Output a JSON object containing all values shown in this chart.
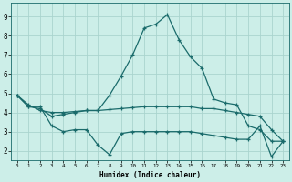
{
  "xlabel": "Humidex (Indice chaleur)",
  "background_color": "#cceee8",
  "grid_color": "#aad4ce",
  "line_color": "#1a6b6b",
  "xlim": [
    -0.5,
    23.5
  ],
  "ylim": [
    1.5,
    9.7
  ],
  "yticks": [
    2,
    3,
    4,
    5,
    6,
    7,
    8,
    9
  ],
  "xticks": [
    0,
    1,
    2,
    3,
    4,
    5,
    6,
    7,
    8,
    9,
    10,
    11,
    12,
    13,
    14,
    15,
    16,
    17,
    18,
    19,
    20,
    21,
    22,
    23
  ],
  "line1_x": [
    0,
    1,
    2,
    3,
    4,
    5,
    6,
    7,
    8,
    9,
    10,
    11,
    12,
    13,
    14,
    15,
    16,
    17,
    18,
    19,
    20,
    21,
    22,
    23
  ],
  "line1_y": [
    4.9,
    4.3,
    4.3,
    3.3,
    3.0,
    3.1,
    3.1,
    2.3,
    1.8,
    2.9,
    3.0,
    3.0,
    3.0,
    3.0,
    3.0,
    3.0,
    2.9,
    2.8,
    2.7,
    2.6,
    2.6,
    3.3,
    1.7,
    2.5
  ],
  "line2_x": [
    0,
    1,
    2,
    3,
    4,
    5,
    6,
    7,
    8,
    9,
    10,
    11,
    12,
    13,
    14,
    15,
    16,
    17,
    18,
    19,
    20,
    21,
    22,
    23
  ],
  "line2_y": [
    4.9,
    4.3,
    4.2,
    3.8,
    3.9,
    4.0,
    4.1,
    4.1,
    4.9,
    5.9,
    7.0,
    8.4,
    8.6,
    9.1,
    7.8,
    6.9,
    6.3,
    4.7,
    4.5,
    4.4,
    3.3,
    3.1,
    2.5,
    2.5
  ],
  "line3_x": [
    0,
    1,
    2,
    3,
    4,
    5,
    6,
    7,
    8,
    9,
    10,
    11,
    12,
    13,
    14,
    15,
    16,
    17,
    18,
    19,
    20,
    21,
    22,
    23
  ],
  "line3_y": [
    4.9,
    4.4,
    4.1,
    4.0,
    4.0,
    4.05,
    4.1,
    4.1,
    4.15,
    4.2,
    4.25,
    4.3,
    4.3,
    4.3,
    4.3,
    4.3,
    4.2,
    4.2,
    4.1,
    4.0,
    3.9,
    3.8,
    3.1,
    2.5
  ]
}
